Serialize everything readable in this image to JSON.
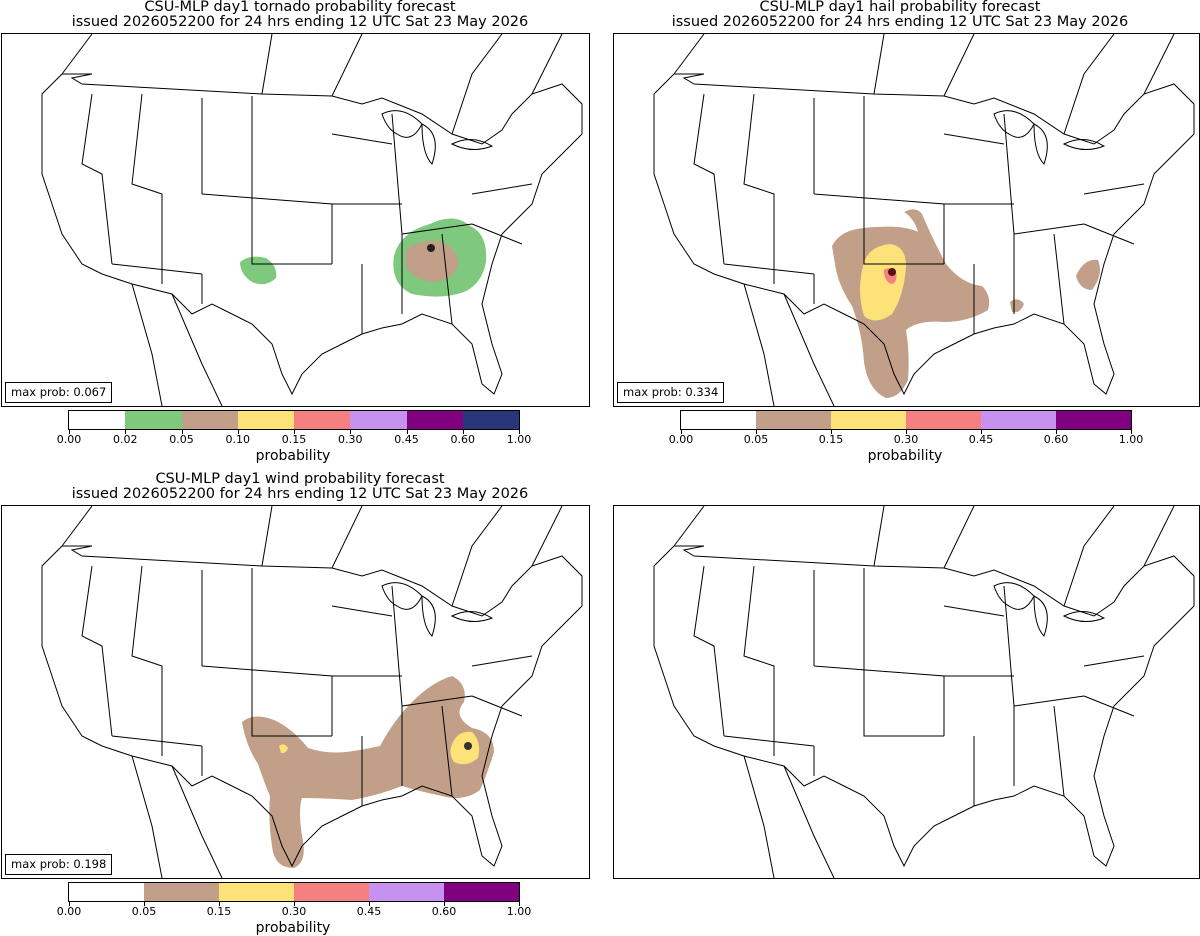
{
  "panels": [
    {
      "id": "tornado",
      "title_line1": "CSU-MLP day1 tornado probability forecast",
      "title_line2": "issued 2026052200 for 24 hrs ending 12 UTC Sat 23 May 2026",
      "max_prob": "max prob: 0.067",
      "colorbar_label": "probability",
      "levels": [
        "0.00",
        "0.02",
        "0.05",
        "0.10",
        "0.15",
        "0.30",
        "0.45",
        "0.60",
        "1.00"
      ],
      "colors": [
        "#ffffff",
        "#7fc97f",
        "#c19f89",
        "#fde27a",
        "#f67f7f",
        "#c792ef",
        "#800080",
        "#283779"
      ]
    },
    {
      "id": "hail",
      "title_line1": "CSU-MLP day1 hail probability forecast",
      "title_line2": "issued 2026052200 for 24 hrs ending 12 UTC Sat 23 May 2026",
      "max_prob": "max prob: 0.334",
      "colorbar_label": "probability",
      "levels": [
        "0.00",
        "0.05",
        "0.15",
        "0.30",
        "0.45",
        "0.60",
        "1.00"
      ],
      "colors": [
        "#ffffff",
        "#c19f89",
        "#fde27a",
        "#f67f7f",
        "#c792ef",
        "#800080"
      ]
    },
    {
      "id": "wind",
      "title_line1": "CSU-MLP day1 wind probability forecast",
      "title_line2": "issued 2026052200 for 24 hrs ending 12 UTC Sat 23 May 2026",
      "max_prob": "max prob: 0.198",
      "colorbar_label": "probability",
      "levels": [
        "0.00",
        "0.05",
        "0.15",
        "0.30",
        "0.45",
        "0.60",
        "1.00"
      ],
      "colors": [
        "#ffffff",
        "#c19f89",
        "#fde27a",
        "#f67f7f",
        "#c792ef",
        "#800080"
      ]
    },
    {
      "id": "blank",
      "title_line1": "",
      "title_line2": "",
      "max_prob": "",
      "colorbar_label": "",
      "levels": [],
      "colors": []
    }
  ]
}
